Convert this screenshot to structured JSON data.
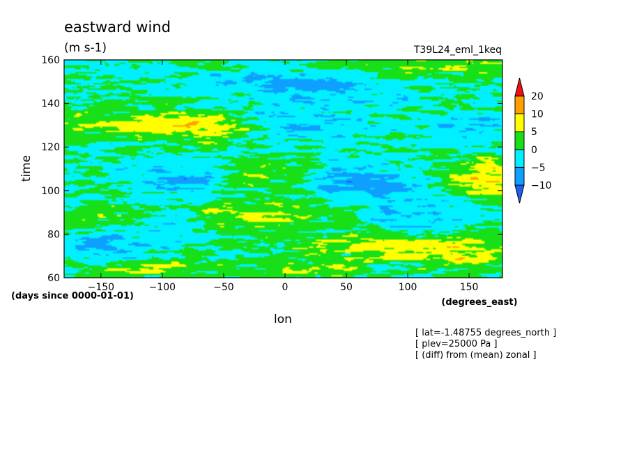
{
  "chart_data": {
    "type": "heatmap",
    "title": "eastward wind",
    "units": "(m s-1)",
    "run_label": "T39L24_eml_1keq",
    "xlabel": "lon",
    "x_units": "(degrees_east)",
    "ylabel": "time",
    "y_units": "(days since 0000-01-01)",
    "xlim": [
      -180,
      177.2
    ],
    "ylim": [
      60,
      160
    ],
    "x_ticks": [
      -150,
      -100,
      -50,
      0,
      50,
      100,
      150
    ],
    "y_ticks": [
      60,
      80,
      100,
      120,
      140,
      160
    ],
    "colorbar": {
      "levels": [
        -10,
        -5,
        0,
        5,
        10,
        20
      ],
      "colors": [
        "#1e5ff0",
        "#0fa0ff",
        "#00f0ff",
        "#18e018",
        "#ffff00",
        "#ffa000",
        "#ee1010"
      ],
      "extend": "both"
    },
    "annotations": [
      "[ lat=-1.48755 degrees_north ]",
      "[ plev=25000 Pa ]",
      "[ (diff) from (mean) zonal ]"
    ],
    "field": {
      "description": "zonal deviation of eastward wind, contour-filled; values estimated from colours",
      "features": [
        {
          "lon": -30,
          "time": 105,
          "value": 8,
          "sigma_lon": 30,
          "sigma_time": 6
        },
        {
          "lon": -20,
          "time": 88,
          "value": 6,
          "sigma_lon": 45,
          "sigma_time": 4
        },
        {
          "lon": -105,
          "time": 131,
          "value": 7,
          "sigma_lon": 45,
          "sigma_time": 4
        },
        {
          "lon": -65,
          "time": 128,
          "value": 5,
          "sigma_lon": 30,
          "sigma_time": 4
        },
        {
          "lon": 165,
          "time": 106,
          "value": 9,
          "sigma_lon": 22,
          "sigma_time": 6
        },
        {
          "lon": 140,
          "time": 72,
          "value": 8,
          "sigma_lon": 35,
          "sigma_time": 5
        },
        {
          "lon": -110,
          "time": 64,
          "value": 6,
          "sigma_lon": 35,
          "sigma_time": 3
        },
        {
          "lon": 60,
          "time": 75,
          "value": 5,
          "sigma_lon": 35,
          "sigma_time": 4
        },
        {
          "lon": 20,
          "time": 63,
          "value": 5,
          "sigma_lon": 30,
          "sigma_time": 3
        },
        {
          "lon": 120,
          "time": 157,
          "value": 4,
          "sigma_lon": 55,
          "sigma_time": 3
        },
        {
          "lon": -150,
          "time": 88,
          "value": 4,
          "sigma_lon": 25,
          "sigma_time": 4
        },
        {
          "lon": -70,
          "time": 105,
          "value": -8,
          "sigma_lon": 35,
          "sigma_time": 6
        },
        {
          "lon": 60,
          "time": 104,
          "value": -7,
          "sigma_lon": 40,
          "sigma_time": 5
        },
        {
          "lon": 10,
          "time": 130,
          "value": -5,
          "sigma_lon": 40,
          "sigma_time": 5
        },
        {
          "lon": -140,
          "time": 75,
          "value": -6,
          "sigma_lon": 30,
          "sigma_time": 5
        },
        {
          "lon": 40,
          "time": 145,
          "value": -6,
          "sigma_lon": 35,
          "sigma_time": 5
        },
        {
          "lon": -40,
          "time": 150,
          "value": -5,
          "sigma_lon": 35,
          "sigma_time": 4
        },
        {
          "lon": 110,
          "time": 88,
          "value": -5,
          "sigma_lon": 30,
          "sigma_time": 5
        },
        {
          "lon": -100,
          "time": 85,
          "value": -4,
          "sigma_lon": 30,
          "sigma_time": 4
        },
        {
          "lon": 150,
          "time": 130,
          "value": -4,
          "sigma_lon": 30,
          "sigma_time": 5
        }
      ]
    }
  }
}
